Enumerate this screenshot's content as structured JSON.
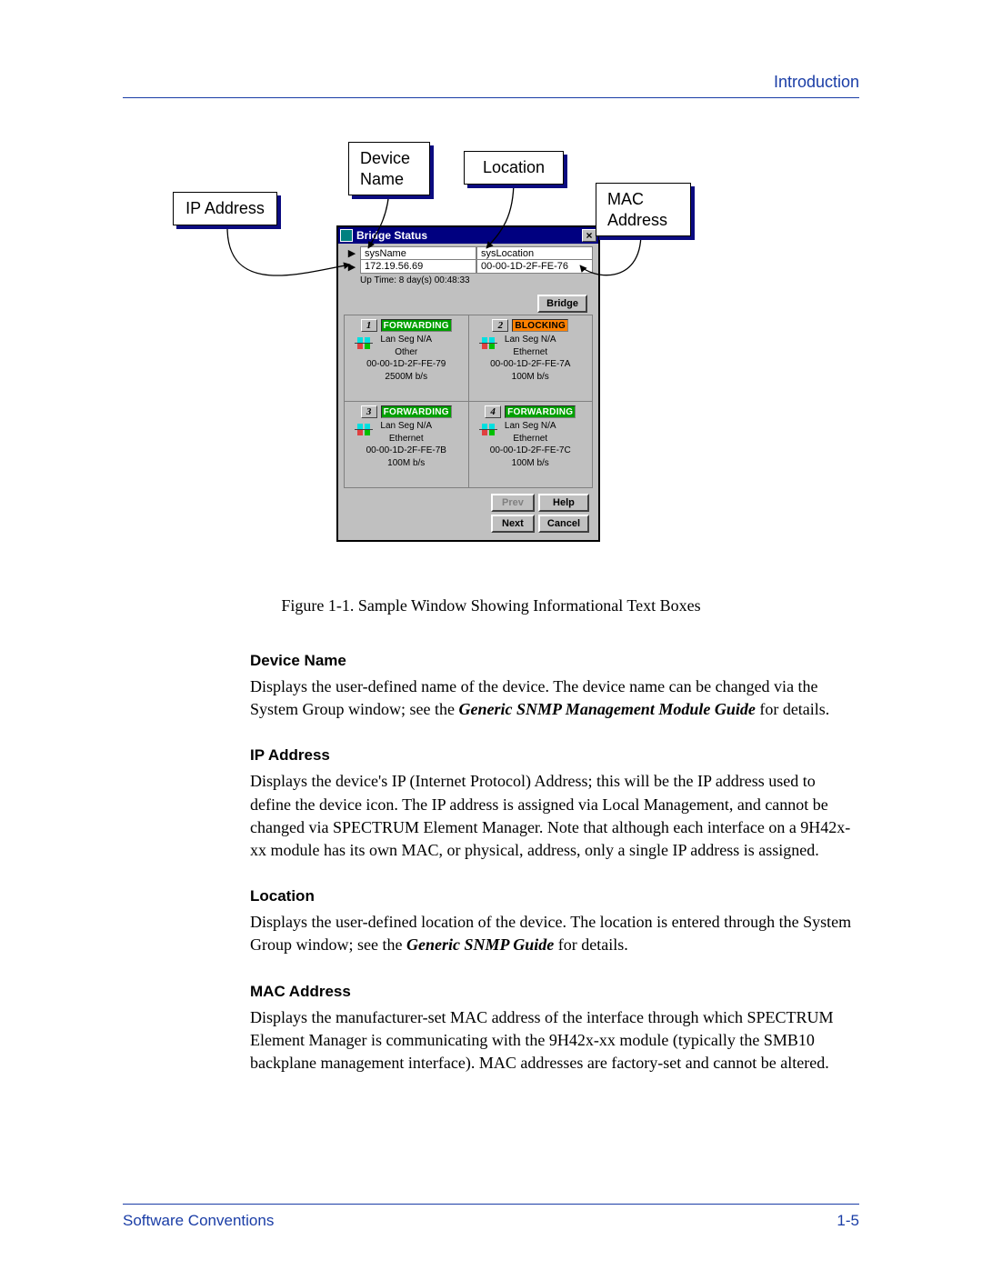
{
  "header": {
    "title": "Introduction"
  },
  "callouts": {
    "ip": "IP Address",
    "dev": "Device\nName",
    "loc": "Location",
    "mac": "MAC\nAddress"
  },
  "colors": {
    "accent": "#1a3da6",
    "titlebar": "#000080",
    "win_face": "#c0c0c0",
    "state_forward_bg": "#00a000",
    "state_forward_fg": "#ffffff",
    "state_block_bg": "#ff8000",
    "state_block_fg": "#000000",
    "callout_shadow": "#0b0b80"
  },
  "window": {
    "title": "Bridge Status",
    "fields": {
      "sysName_label": "sysName",
      "sysLocation_label": "sysLocation",
      "ip_value": "172.19.56.69",
      "mac_value": "00-00-1D-2F-FE-76"
    },
    "uptime": "Up Time: 8 day(s) 00:48:33",
    "bridge_button": "Bridge",
    "ports": [
      {
        "num": "1",
        "state": "FORWARDING",
        "state_class": "fwd",
        "seg": "Lan Seg N/A",
        "type": "Other",
        "mac": "00-00-1D-2F-FE-79",
        "speed": "2500M b/s"
      },
      {
        "num": "2",
        "state": "BLOCKING",
        "state_class": "blk",
        "seg": "Lan Seg N/A",
        "type": "Ethernet",
        "mac": "00-00-1D-2F-FE-7A",
        "speed": "100M b/s"
      },
      {
        "num": "3",
        "state": "FORWARDING",
        "state_class": "fwd",
        "seg": "Lan Seg N/A",
        "type": "Ethernet",
        "mac": "00-00-1D-2F-FE-7B",
        "speed": "100M b/s"
      },
      {
        "num": "4",
        "state": "FORWARDING",
        "state_class": "fwd",
        "seg": "Lan Seg N/A",
        "type": "Ethernet",
        "mac": "00-00-1D-2F-FE-7C",
        "speed": "100M b/s"
      }
    ],
    "nav": {
      "prev": "Prev",
      "next": "Next",
      "help": "Help",
      "cancel": "Cancel"
    }
  },
  "caption": "Figure 1-1.  Sample Window Showing Informational Text Boxes",
  "sections": {
    "device_name": {
      "title": "Device Name",
      "text_pre": "Displays the user-defined name of the device. The device name can be changed via the System Group window; see the ",
      "em": "Generic SNMP Management Module Guide",
      "text_post": " for details."
    },
    "ip_address": {
      "title": "IP Address",
      "text": "Displays the device's IP (Internet Protocol) Address; this will be the IP address used to define the device icon. The IP address is assigned via Local Management, and cannot be changed via SPECTRUM Element Manager. Note that although each interface on a 9H42x-xx module has its own MAC, or physical, address, only a single IP address is assigned."
    },
    "location": {
      "title": "Location",
      "text_pre": "Displays the user-defined location of the device. The location is entered through the System Group window; see the ",
      "em": "Generic SNMP Guide",
      "text_post": " for details."
    },
    "mac_address": {
      "title": "MAC Address",
      "text": "Displays the manufacturer-set MAC address of the interface through which SPECTRUM Element Manager is communicating with the 9H42x-xx module (typically the SMB10 backplane management interface). MAC addresses are factory-set and cannot be altered."
    }
  },
  "footer": {
    "left": "Software Conventions",
    "right": "1-5"
  }
}
